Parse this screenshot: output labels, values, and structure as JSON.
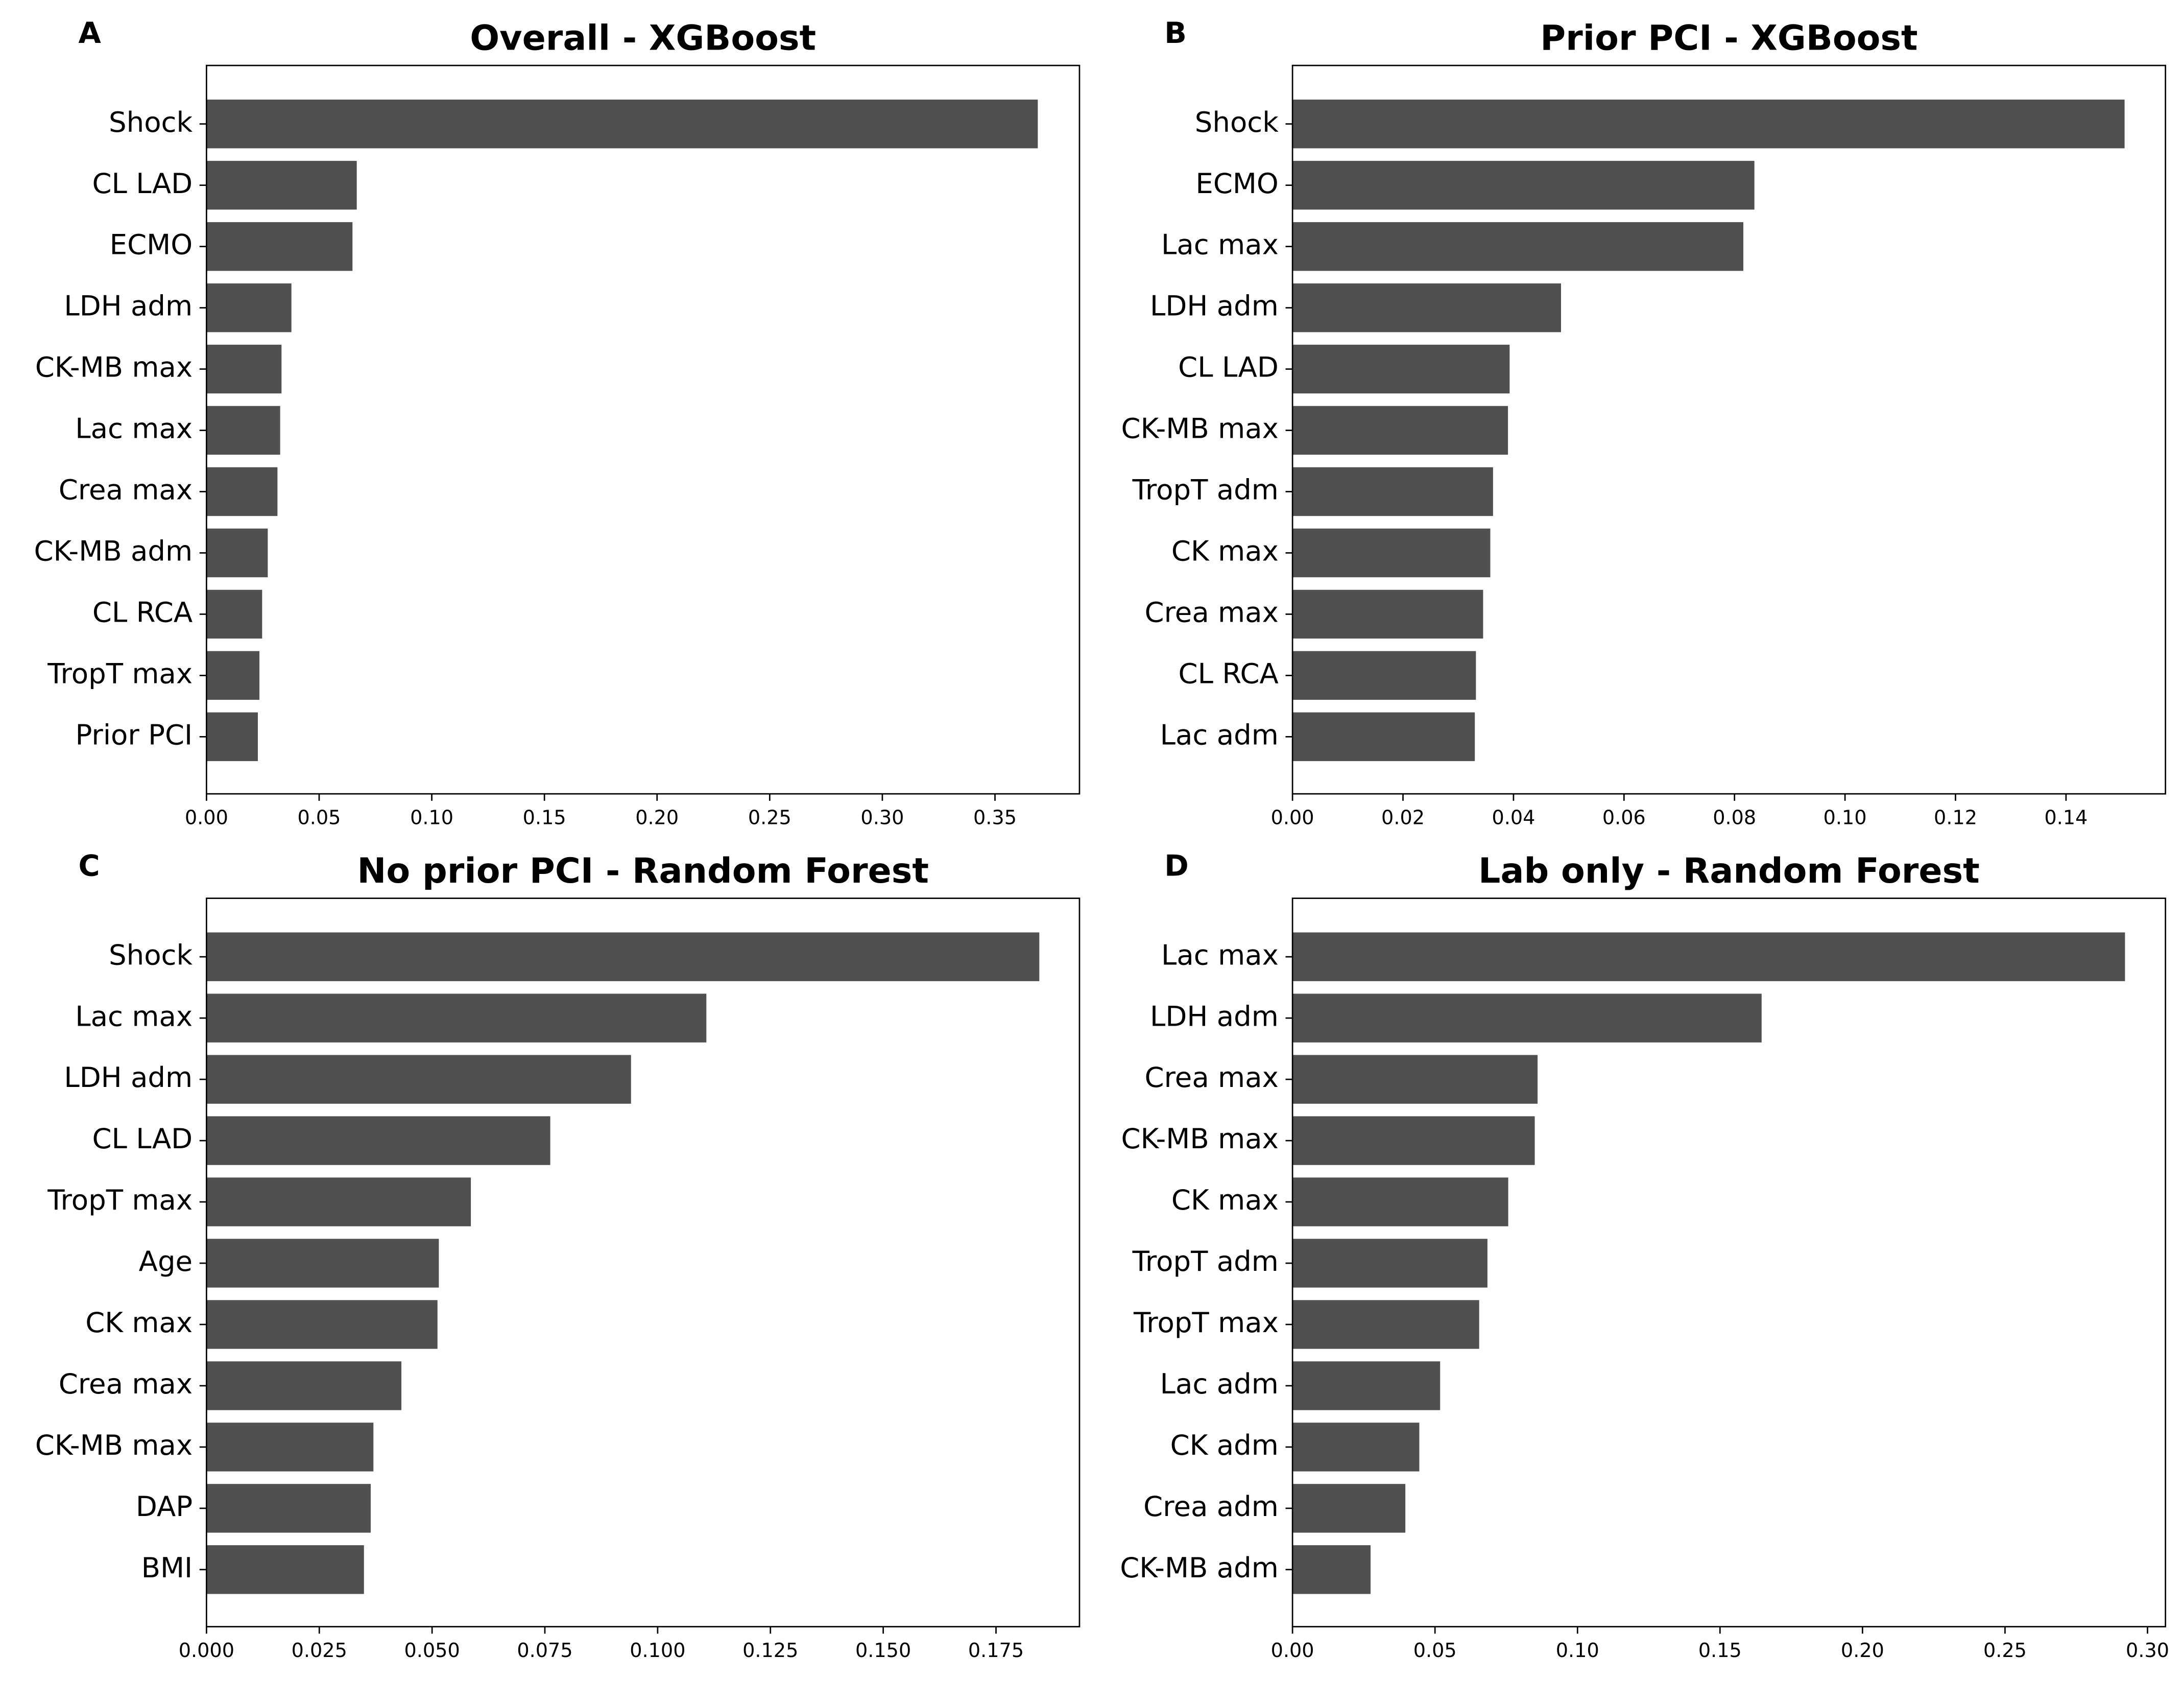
{
  "chart_data": [
    {
      "type": "bar",
      "orientation": "horizontal",
      "panel": "A",
      "title": "Overall - XGBoost",
      "color": "#505050",
      "categories": [
        "Shock",
        "CL LAD",
        "ECMO",
        "LDH adm",
        "CK-MB max",
        "Lac max",
        "Crea max",
        "CK-MB adm",
        "CL RCA",
        "TropT max",
        "Prior PCI"
      ],
      "values": [
        0.369,
        0.0667,
        0.0648,
        0.0377,
        0.0333,
        0.0327,
        0.0315,
        0.0272,
        0.0247,
        0.0235,
        0.0228
      ],
      "xlim": [
        0,
        0.3875
      ],
      "xticks": [
        {
          "value": 0,
          "label": "0.00"
        },
        0.05,
        {
          "value": 0.1,
          "label": "0.10"
        },
        0.15,
        {
          "value": 0.2,
          "label": "0.20"
        },
        0.25,
        {
          "value": 0.3,
          "label": "0.30"
        },
        0.35
      ]
    },
    {
      "type": "bar",
      "orientation": "horizontal",
      "panel": "B",
      "title": "Prior PCI - XGBoost",
      "color": "#505050",
      "categories": [
        "Shock",
        "ECMO",
        "Lac max",
        "LDH adm",
        "CL LAD",
        "CK-MB max",
        "TropT adm",
        "CK max",
        "Crea max",
        "CL RCA",
        "Lac adm"
      ],
      "values": [
        0.1506,
        0.0836,
        0.0816,
        0.0486,
        0.0393,
        0.039,
        0.0363,
        0.0358,
        0.0345,
        0.0332,
        0.033
      ],
      "xlim": [
        0,
        0.158
      ],
      "xticks": [
        {
          "value": 0,
          "label": "0.00"
        },
        0.02,
        0.04,
        0.06,
        0.08,
        {
          "value": 0.1,
          "label": "0.10"
        },
        0.12,
        0.14
      ]
    },
    {
      "type": "bar",
      "orientation": "horizontal",
      "panel": "C",
      "title": "No prior PCI - Random Forest",
      "color": "#505050",
      "categories": [
        "Shock",
        "Lac max",
        "LDH adm",
        "CL LAD",
        "TropT max",
        "Age",
        "CK max",
        "Crea max",
        "CK-MB max",
        "DAP",
        "BMI"
      ],
      "values": [
        0.1846,
        0.1108,
        0.0941,
        0.0762,
        0.0586,
        0.0515,
        0.0512,
        0.0432,
        0.037,
        0.0364,
        0.0349
      ],
      "xlim": [
        0,
        0.1935
      ],
      "xticks": [
        {
          "value": 0,
          "label": "0.000"
        },
        0.025,
        {
          "value": 0.05,
          "label": "0.050"
        },
        0.075,
        {
          "value": 0.1,
          "label": "0.100"
        },
        0.125,
        {
          "value": 0.15,
          "label": "0.150"
        },
        0.175
      ]
    },
    {
      "type": "bar",
      "orientation": "horizontal",
      "panel": "D",
      "title": "Lab only - Random Forest",
      "color": "#505050",
      "categories": [
        "Lac max",
        "LDH adm",
        "Crea max",
        "CK-MB max",
        "CK max",
        "TropT adm",
        "TropT max",
        "Lac adm",
        "CK adm",
        "Crea adm",
        "CK-MB adm"
      ],
      "values": [
        0.2921,
        0.1646,
        0.086,
        0.085,
        0.0757,
        0.0684,
        0.0655,
        0.0518,
        0.0445,
        0.0396,
        0.0274
      ],
      "xlim": [
        0,
        0.3063
      ],
      "xticks": [
        {
          "value": 0,
          "label": "0.00"
        },
        0.05,
        {
          "value": 0.1,
          "label": "0.10"
        },
        0.15,
        {
          "value": 0.2,
          "label": "0.20"
        },
        0.25,
        {
          "value": 0.3,
          "label": "0.30"
        }
      ]
    }
  ]
}
